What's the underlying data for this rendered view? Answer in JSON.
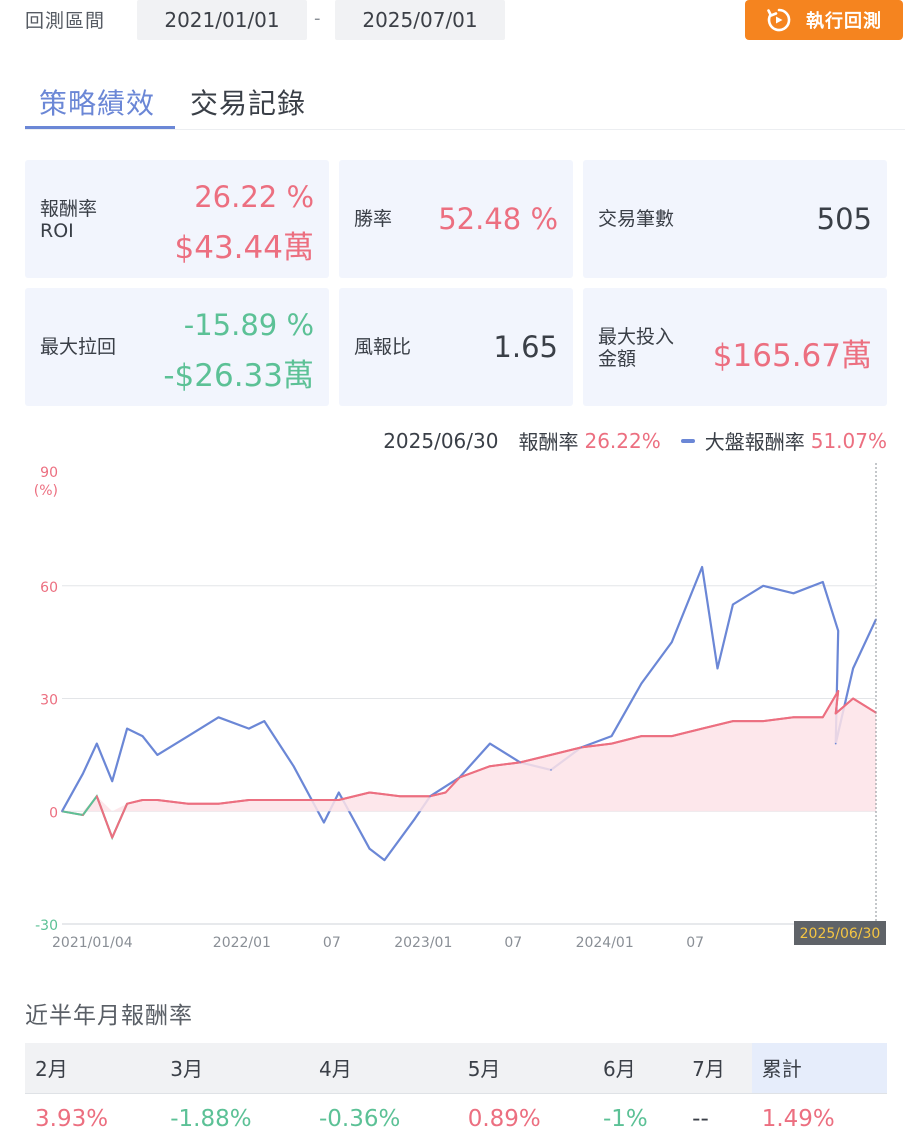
{
  "header": {
    "range_label": "回測區間",
    "start_date": "2021/01/01",
    "separator": "-",
    "end_date": "2025/07/01",
    "run_button": "執行回測"
  },
  "tabs": [
    {
      "label": "策略績效",
      "active": true
    },
    {
      "label": "交易記錄",
      "active": false
    }
  ],
  "stats": {
    "roi_label": "報酬率\nROI",
    "roi_pct": "26.22 %",
    "roi_amount": "$43.44萬",
    "win_label": "勝率",
    "win_value": "52.48 %",
    "trades_label": "交易筆數",
    "trades_value": "505",
    "mdd_label": "最大拉回",
    "mdd_pct": "-15.89 %",
    "mdd_amount": "-$26.33萬",
    "rr_label": "風報比",
    "rr_value": "1.65",
    "maxinv_label": "最大投入\n金額",
    "maxinv_value": "$165.67萬"
  },
  "legend": {
    "date": "2025/06/30",
    "strategy_label": "報酬率",
    "strategy_value": "26.22%",
    "market_label": "大盤報酬率",
    "market_value": "51.07%"
  },
  "colors": {
    "accent": "#6b87d6",
    "positive": "#ec6f80",
    "negative": "#5cc196",
    "button": "#f5841f"
  },
  "chart_data": {
    "type": "line",
    "ylim": [
      -30,
      90
    ],
    "yticks": [
      "90",
      "60",
      "30",
      "0",
      "-30"
    ],
    "yunit": "(%)",
    "xticks": [
      "2021/01/04",
      "2022/01",
      "07",
      "2023/01",
      "07",
      "2024/01",
      "07",
      "2025/06/30"
    ],
    "cursor_date": "2025/06/30",
    "series": [
      {
        "name": "報酬率",
        "color": "#ec6f80",
        "x": [
          "2021/01/04",
          "2021/02",
          "2021/03",
          "2021/04",
          "2021/05",
          "2021/06",
          "2021/07",
          "2021/09",
          "2021/11",
          "2022/01",
          "2022/03",
          "2022/05",
          "2022/07",
          "2022/09",
          "2022/11",
          "2023/01",
          "2023/02",
          "2023/03",
          "2023/05",
          "2023/07",
          "2023/09",
          "2023/11",
          "2024/01",
          "2024/03",
          "2024/05",
          "2024/07",
          "2024/09",
          "2024/11",
          "2025/01",
          "2025/03",
          "2025/04",
          "2025/04/10",
          "2025/05",
          "2025/06/30"
        ],
        "values": [
          0,
          -1,
          4,
          -7,
          2,
          3,
          3,
          2,
          2,
          3,
          3,
          3,
          3,
          5,
          4,
          4,
          5,
          9,
          12,
          13,
          15,
          17,
          18,
          20,
          20,
          22,
          24,
          24,
          25,
          25,
          32,
          26,
          30,
          26.22
        ]
      },
      {
        "name": "大盤報酬率",
        "color": "#6b87d6",
        "x": [
          "2021/01/04",
          "2021/02",
          "2021/03",
          "2021/04",
          "2021/05",
          "2021/06",
          "2021/07",
          "2021/09",
          "2021/11",
          "2022/01",
          "2022/02",
          "2022/04",
          "2022/06",
          "2022/07",
          "2022/09",
          "2022/10",
          "2022/12",
          "2023/01",
          "2023/03",
          "2023/05",
          "2023/07",
          "2023/09",
          "2023/11",
          "2024/01",
          "2024/03",
          "2024/05",
          "2024/07",
          "2024/08",
          "2024/09",
          "2024/11",
          "2025/01",
          "2025/03",
          "2025/04",
          "2025/04/10",
          "2025/05",
          "2025/06/30"
        ],
        "values": [
          0,
          10,
          18,
          8,
          22,
          20,
          15,
          20,
          25,
          22,
          24,
          12,
          -3,
          5,
          -10,
          -13,
          -2,
          4,
          9,
          18,
          13,
          11,
          17,
          20,
          34,
          45,
          65,
          38,
          55,
          60,
          58,
          61,
          48,
          18,
          38,
          51.07
        ]
      }
    ]
  },
  "monthly": {
    "title": "近半年月報酬率",
    "headers": [
      "2月",
      "3月",
      "4月",
      "5月",
      "6月",
      "7月",
      "累計"
    ],
    "values": [
      "3.93%",
      "-1.88%",
      "-0.36%",
      "0.89%",
      "-1%",
      "--",
      "1.49%"
    ],
    "tones": [
      "red",
      "green",
      "green",
      "red",
      "green",
      "dark",
      "red"
    ]
  }
}
